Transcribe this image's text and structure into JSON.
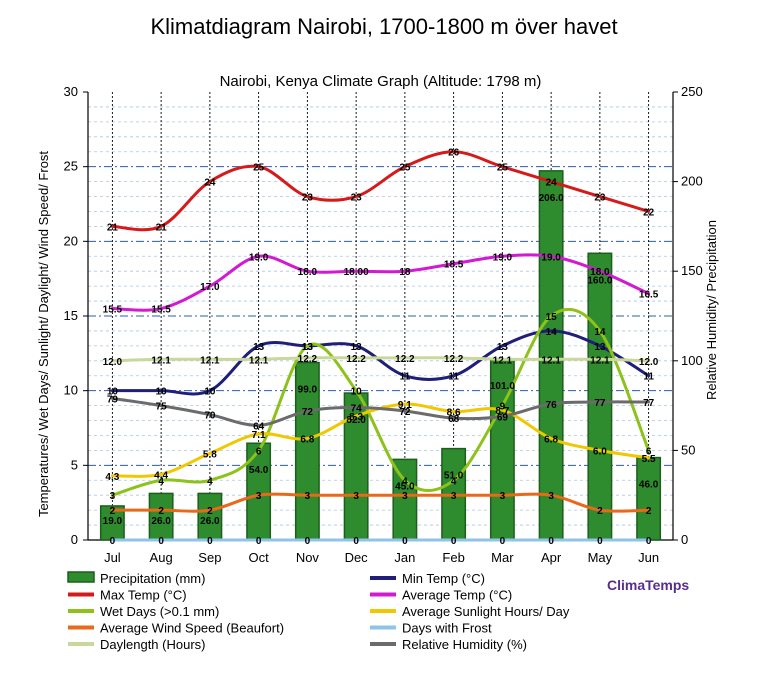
{
  "page_title": "Klimatdiagram Nairobi, 1700-1800 m över havet",
  "chart_data": {
    "type": "bar",
    "title": "Nairobi, Kenya Climate Graph (Altitude: 1798 m)",
    "ylabel_left": "Temperatures/ Wet Days/ Sunlight/ Daylight/ Wind Speed/ Frost",
    "ylabel_right": "Relative Humidity/ Precipitation",
    "ylim_left": [
      0,
      30
    ],
    "ylim_right": [
      0,
      250
    ],
    "yticks_left": [
      "0",
      "5",
      "10",
      "15",
      "20",
      "25",
      "30"
    ],
    "yticks_right": [
      "0",
      "50",
      "100",
      "150",
      "200",
      "250"
    ],
    "categories": [
      "Jul",
      "Aug",
      "Sep",
      "Oct",
      "Nov",
      "Dec",
      "Jan",
      "Feb",
      "Mar",
      "Apr",
      "May",
      "Jun"
    ],
    "grid": true,
    "legend_position": "bottom",
    "brand": "ClimaTemps",
    "series": [
      {
        "name": "Precipitation (mm)",
        "axis": "right",
        "kind": "bar",
        "color": "#2e8b2e",
        "values": [
          19.0,
          26.0,
          26.0,
          54.0,
          99.0,
          82.0,
          45.0,
          51.0,
          101.0,
          206.0,
          160.0,
          46.0
        ],
        "labels": [
          "19.0",
          "26.0",
          "26.0",
          "54.0",
          "99.0",
          "82.0",
          "45.0",
          "51.0",
          "101.0",
          "206.0",
          "160.0",
          "46.0"
        ]
      },
      {
        "name": "Min Temp (°C)",
        "axis": "left",
        "kind": "line",
        "color": "#1f1f7a",
        "values": [
          10,
          10,
          10,
          13,
          13,
          13,
          11,
          11,
          13,
          14,
          13,
          11
        ],
        "labels": [
          "10",
          "10",
          "10",
          "13",
          "13",
          "13",
          "11",
          "11",
          "13",
          "14",
          "13",
          "11"
        ]
      },
      {
        "name": "Max Temp (°C)",
        "axis": "left",
        "kind": "line",
        "color": "#d41a1a",
        "values": [
          21,
          21,
          24,
          25,
          23,
          23,
          25,
          26,
          25,
          24,
          23,
          22
        ],
        "labels": [
          "21",
          "21",
          "24",
          "25",
          "23",
          "23",
          "25",
          "26",
          "25",
          "24",
          "23",
          "22"
        ]
      },
      {
        "name": "Average Temp (°C)",
        "axis": "left",
        "kind": "line",
        "color": "#d21ad2",
        "values": [
          15.5,
          15.5,
          17.0,
          19.0,
          18.0,
          18.0,
          18.0,
          18.5,
          19.0,
          19.0,
          18.0,
          16.5
        ],
        "labels": [
          "15.5",
          "15.5",
          "17.0",
          "19.0",
          "18.0",
          "18.00",
          "18",
          "18.5",
          "19.0",
          "19.0",
          "18.0",
          "16.5"
        ]
      },
      {
        "name": "Wet Days (>0.1 mm)",
        "axis": "left",
        "kind": "line",
        "color": "#8cc21a",
        "values": [
          3,
          4,
          4,
          6,
          13,
          10,
          4,
          4,
          9,
          15,
          14,
          6
        ],
        "labels": [
          "3",
          "4",
          "4",
          "6",
          "13",
          "10",
          "4",
          "4",
          "9",
          "15",
          "14",
          "6"
        ]
      },
      {
        "name": "Average Sunlight Hours/ Day",
        "axis": "left",
        "kind": "line",
        "color": "#f0c800",
        "values": [
          4.3,
          4.4,
          5.8,
          7.1,
          6.8,
          8.3,
          9.1,
          8.6,
          8.7,
          6.8,
          6.0,
          5.5
        ],
        "labels": [
          "4.3",
          "4.4",
          "5.8",
          "7.1",
          "6.8",
          "8.3",
          "9.1",
          "8.6",
          "8.7",
          "6.8",
          "6.0",
          "5.5"
        ]
      },
      {
        "name": "Average Wind Speed (Beaufort)",
        "axis": "left",
        "kind": "line",
        "color": "#e8691a",
        "values": [
          2,
          2,
          2,
          3,
          3,
          3,
          3,
          3,
          3,
          3,
          2,
          2
        ],
        "labels": [
          "2",
          "2",
          "2",
          "3",
          "3",
          "3",
          "3",
          "3",
          "3",
          "3",
          "2",
          "2"
        ]
      },
      {
        "name": "Days with Frost",
        "axis": "left",
        "kind": "line",
        "color": "#8ec3ea",
        "values": [
          0,
          0,
          0,
          0,
          0,
          0,
          0,
          0,
          0,
          0,
          0,
          0
        ],
        "labels": [
          "0",
          "0",
          "0",
          "0",
          "0",
          "0",
          "0",
          "0",
          "0",
          "0",
          "0",
          "0"
        ]
      },
      {
        "name": "Daylength (Hours)",
        "axis": "left",
        "kind": "line",
        "color": "#c9d89a",
        "values": [
          12.0,
          12.1,
          12.1,
          12.1,
          12.2,
          12.2,
          12.2,
          12.2,
          12.1,
          12.1,
          12.1,
          12.0
        ],
        "labels": [
          "12.0",
          "12.1",
          "12.1",
          "12.1",
          "12.2",
          "12.2",
          "12.2",
          "12.2",
          "12.1",
          "12.1",
          "12.1",
          "12.0"
        ]
      },
      {
        "name": "Relative Humidity (%)",
        "axis": "right",
        "kind": "line",
        "color": "#6b6b6b",
        "values": [
          79,
          75,
          70,
          64,
          72,
          74,
          72,
          68,
          69,
          76,
          77,
          77
        ],
        "labels": [
          "79",
          "75",
          "70",
          "64",
          "72",
          "74",
          "72",
          "68",
          "69",
          "76",
          "77",
          "77"
        ]
      }
    ]
  }
}
